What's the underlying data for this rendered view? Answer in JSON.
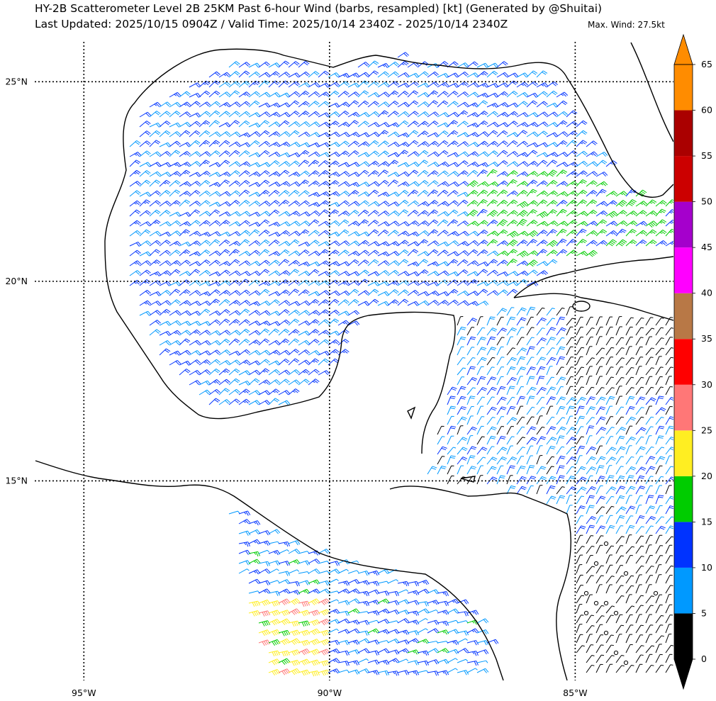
{
  "header": {
    "title": "HY-2B Scatterometer Level 2B 25KM Past 6-hour Wind (barbs, resampled) [kt] (Generated by @Shuitai)",
    "subtitle": "Last Updated: 2025/10/15 0904Z / Valid Time: 2025/10/14 2340Z - 2025/10/14 2340Z",
    "max_wind": "Max. Wind: 27.5kt"
  },
  "map": {
    "region": "Gulf of Mexico and Caribbean",
    "lon_range": [
      -96.0,
      -83.0
    ],
    "lat_range": [
      10.0,
      26.0
    ],
    "grid_style": "dotted",
    "lat_labels": [
      "25°N",
      "20°N",
      "15°N"
    ],
    "lon_labels": [
      "95°W",
      "90°W",
      "85°W"
    ]
  },
  "colorbar": {
    "ticks": [
      "65",
      "60",
      "55",
      "50",
      "45",
      "40",
      "35",
      "30",
      "25",
      "20",
      "15",
      "10",
      "5",
      "0"
    ],
    "bins": [
      {
        "range": [
          0,
          5
        ],
        "color": "#000000"
      },
      {
        "range": [
          5,
          10
        ],
        "color": "#0099ff"
      },
      {
        "range": [
          10,
          15
        ],
        "color": "#0033ff"
      },
      {
        "range": [
          15,
          20
        ],
        "color": "#00cc00"
      },
      {
        "range": [
          20,
          25
        ],
        "color": "#ffee22"
      },
      {
        "range": [
          25,
          30
        ],
        "color": "#ff7777"
      },
      {
        "range": [
          30,
          35
        ],
        "color": "#ff0000"
      },
      {
        "range": [
          35,
          40
        ],
        "color": "#b87846"
      },
      {
        "range": [
          40,
          45
        ],
        "color": "#ff00ff"
      },
      {
        "range": [
          45,
          50
        ],
        "color": "#a500cc"
      },
      {
        "range": [
          50,
          55
        ],
        "color": "#cc0000"
      },
      {
        "range": [
          55,
          60
        ],
        "color": "#aa0000"
      },
      {
        "range": [
          60,
          65
        ],
        "color": "#ff8c00"
      }
    ],
    "over_color": "#ff8c00",
    "under_color": "#000000"
  }
}
